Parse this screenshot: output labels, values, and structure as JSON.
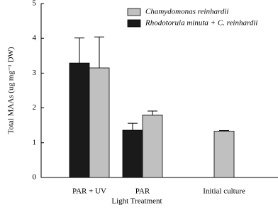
{
  "chart_data": {
    "type": "bar",
    "xlabel": "Light Treatment",
    "ylabel": "Total MAAs (ug mg⁻¹ DW)",
    "categories": [
      "PAR + UV",
      "PAR",
      "Initial culture"
    ],
    "series": [
      {
        "name": "Rhodotorula minuta + C. reinhardii",
        "color": "#1a1a1a",
        "values": [
          3.29,
          1.36,
          null
        ],
        "errors": [
          0.72,
          0.2,
          null
        ]
      },
      {
        "name": "Chamydomonas reinhardii",
        "color": "#c0c0c0",
        "values": [
          3.15,
          1.79,
          1.33
        ],
        "errors": [
          0.89,
          0.12,
          0.02
        ]
      }
    ],
    "legend_order": [
      1,
      0
    ],
    "ylim": [
      0,
      5
    ],
    "yticks": [
      0,
      1,
      2,
      3,
      4,
      5
    ],
    "grid": false
  }
}
